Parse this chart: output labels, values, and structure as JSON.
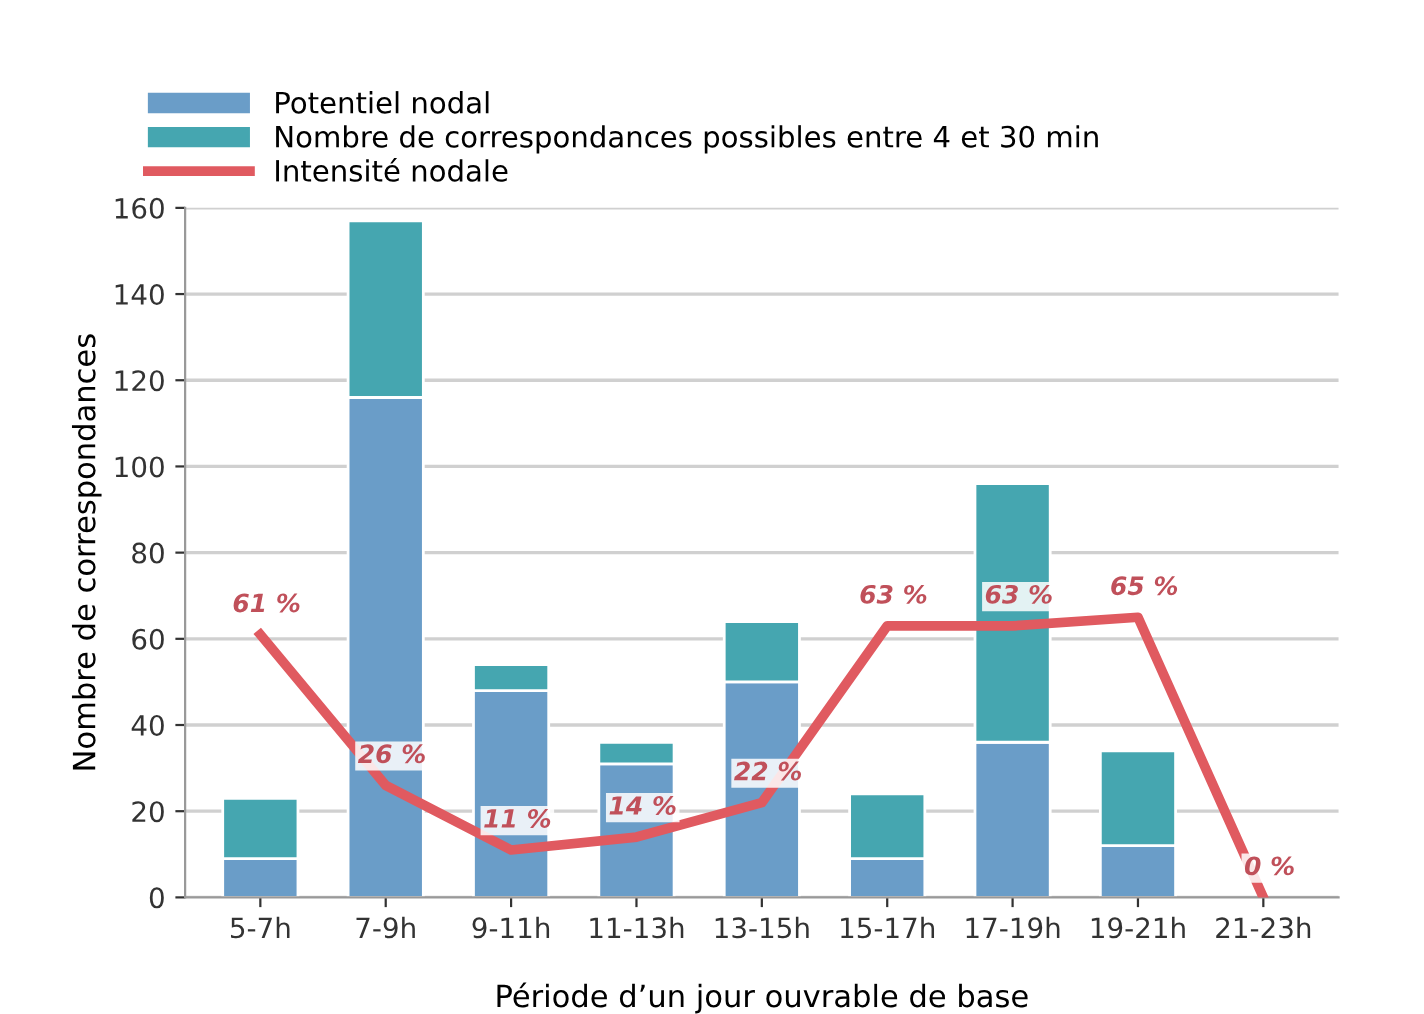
{
  "chart_data": {
    "type": "bar",
    "stacked": true,
    "xlabel": "Période d’un jour ouvrable de base",
    "ylabel": "Nombre de correspondances",
    "categories": [
      "5-7h",
      "7-9h",
      "9-11h",
      "11-13h",
      "13-15h",
      "15-17h",
      "17-19h",
      "19-21h",
      "21-23h"
    ],
    "series": [
      {
        "name": "Potentiel nodal",
        "color": "#6a9dc8",
        "values": [
          9,
          116,
          48,
          31,
          50,
          9,
          36,
          12,
          0
        ]
      },
      {
        "name": "Nombre de correspondances possibles entre 4 et 30 min",
        "color": "#45a6b0",
        "values": [
          14,
          41,
          6,
          5,
          14,
          15,
          60,
          22,
          0
        ]
      },
      {
        "name": "Intensité nodale",
        "type": "line",
        "color": "#e05a60",
        "values": [
          61,
          26,
          11,
          14,
          22,
          63,
          63,
          65,
          0
        ],
        "value_labels": [
          "61 %",
          "26 %",
          "11 %",
          "14 %",
          "22 %",
          "63 %",
          "63 %",
          "65 %",
          "0 %"
        ]
      }
    ],
    "ylim": [
      0,
      160
    ],
    "yticks": [
      0,
      20,
      40,
      60,
      80,
      100,
      120,
      140,
      160
    ],
    "grid": "y",
    "legend": "top left",
    "marker": "none",
    "line_style": "solid"
  }
}
